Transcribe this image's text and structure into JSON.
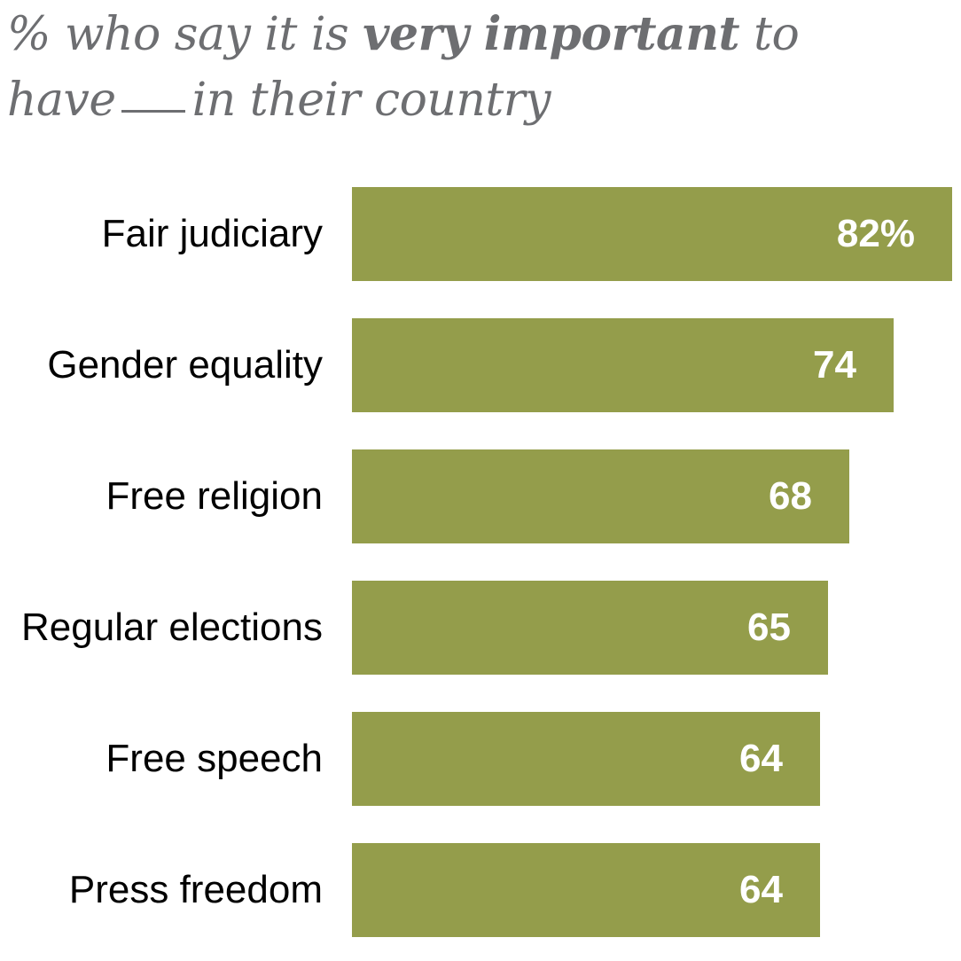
{
  "title": {
    "part1": "% who say it is ",
    "bold": "very important",
    "part2": " to",
    "line2_start": "have",
    "line2_end": "in their country"
  },
  "colors": {
    "bar": "#949d4b",
    "title": "#6d6e71",
    "label": "#000000",
    "value": "#ffffff"
  },
  "chart_data": {
    "type": "bar",
    "orientation": "horizontal",
    "title": "% who say it is very important to have __ in their country",
    "xlabel": "",
    "ylabel": "",
    "xlim": [
      0,
      82
    ],
    "categories": [
      "Fair judiciary",
      "Gender equality",
      "Free religion",
      "Regular elections",
      "Free speech",
      "Press freedom"
    ],
    "values": [
      82,
      74,
      68,
      65,
      64,
      64
    ],
    "value_labels": [
      "82%",
      "74",
      "68",
      "65",
      "64",
      "64"
    ],
    "grid": false,
    "legend": "none"
  }
}
